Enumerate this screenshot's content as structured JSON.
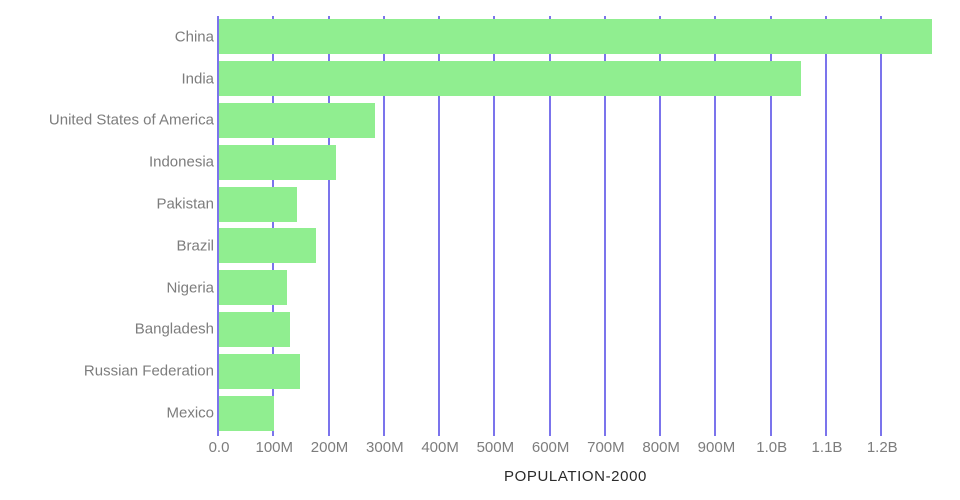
{
  "chart_data": {
    "type": "bar",
    "orientation": "horizontal",
    "xlabel": "POPULATION-2000",
    "categories": [
      "China",
      "India",
      "United States of America",
      "Indonesia",
      "Pakistan",
      "Brazil",
      "Nigeria",
      "Bangladesh",
      "Russian Federation",
      "Mexico"
    ],
    "values_millions": [
      1290,
      1053,
      282,
      212,
      142,
      175,
      123,
      129,
      147,
      100
    ],
    "x_axis": {
      "max_millions": 1290,
      "ticks": [
        {
          "value": 0,
          "label": "0.0"
        },
        {
          "value": 100,
          "label": "100M"
        },
        {
          "value": 200,
          "label": "200M"
        },
        {
          "value": 300,
          "label": "300M"
        },
        {
          "value": 400,
          "label": "400M"
        },
        {
          "value": 500,
          "label": "500M"
        },
        {
          "value": 600,
          "label": "600M"
        },
        {
          "value": 700,
          "label": "700M"
        },
        {
          "value": 800,
          "label": "800M"
        },
        {
          "value": 900,
          "label": "900M"
        },
        {
          "value": 1000,
          "label": "1.0B"
        },
        {
          "value": 1100,
          "label": "1.1B"
        },
        {
          "value": 1200,
          "label": "1.2B"
        }
      ]
    },
    "legend": "none",
    "grid": "vertical-only",
    "colors": {
      "bar": "#90ee90",
      "gridline": "#7b74ec",
      "tick_label": "#7d7d7d",
      "category_label": "#7d7d7d",
      "axis_title": "#2b2b2b"
    }
  }
}
